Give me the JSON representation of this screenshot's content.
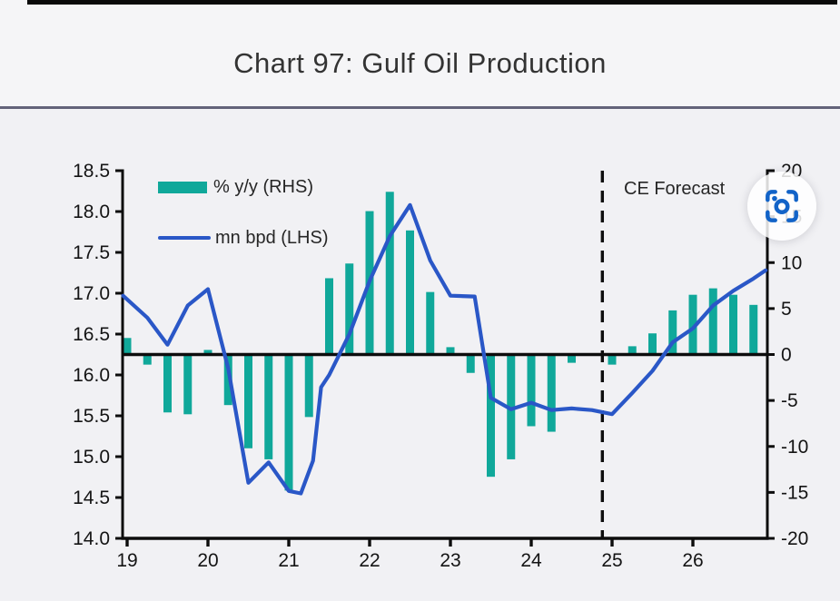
{
  "title": "Chart 97: Gulf Oil Production",
  "legend": {
    "bars_label": "% y/y (RHS)",
    "line_label": "mn bpd (LHS)"
  },
  "forecast": {
    "label": "CE Forecast"
  },
  "colors": {
    "bars": "#10a89a",
    "line": "#2a57c7",
    "axis": "#0d0d0d",
    "rule": "#63637a",
    "background": "#f1f1f4",
    "zoom_icon_blue": "#1263c8"
  },
  "chart_data": {
    "type": "bar+line combo, dual axis",
    "title": "Chart 97: Gulf Oil Production",
    "x_axis": {
      "tick_labels": [
        "19",
        "20",
        "21",
        "22",
        "23",
        "24",
        "25",
        "26"
      ],
      "tick_values": [
        19,
        20,
        21,
        22,
        23,
        24,
        25,
        26
      ],
      "range": [
        18.94,
        26.92
      ]
    },
    "left_axis": {
      "label": "mn bpd (LHS)",
      "tick_labels": [
        "18.5",
        "18.0",
        "17.5",
        "17.0",
        "16.5",
        "16.0",
        "15.5",
        "15.0",
        "14.5",
        "14.0"
      ],
      "tick_values": [
        18.5,
        18.0,
        17.5,
        17.0,
        16.5,
        16.0,
        15.5,
        15.0,
        14.5,
        14.0
      ],
      "range": [
        14.0,
        18.5
      ]
    },
    "right_axis": {
      "label": "% y/y (RHS)",
      "tick_labels": [
        "20",
        "15",
        "10",
        "5",
        "0",
        "-5",
        "-10",
        "-15",
        "-20"
      ],
      "tick_values": [
        20,
        15,
        10,
        5,
        0,
        -5,
        -10,
        -15,
        -20
      ],
      "range": [
        -20,
        20
      ],
      "zero_line": true
    },
    "bars": {
      "name": "% y/y (RHS)",
      "axis": "right",
      "x": [
        19.0,
        19.25,
        19.5,
        19.75,
        20.0,
        20.25,
        20.5,
        20.75,
        21.0,
        21.25,
        21.5,
        21.75,
        22.0,
        22.25,
        22.5,
        22.75,
        23.0,
        23.25,
        23.5,
        23.75,
        24.0,
        24.25,
        24.5,
        25.0,
        25.25,
        25.5,
        25.75,
        26.0,
        26.25,
        26.5,
        26.75
      ],
      "values": [
        1.8,
        -1.1,
        -6.3,
        -6.5,
        0.5,
        -5.5,
        -10.2,
        -11.4,
        -14.8,
        -6.8,
        8.3,
        9.9,
        15.6,
        17.7,
        13.5,
        6.8,
        0.8,
        -2.0,
        -13.3,
        -11.4,
        -7.8,
        -8.4,
        -0.9,
        -1.1,
        0.9,
        2.3,
        4.8,
        6.5,
        7.2,
        6.5,
        5.4
      ]
    },
    "line": {
      "name": "mn bpd (LHS)",
      "axis": "left",
      "points": [
        [
          18.95,
          16.97
        ],
        [
          19.25,
          16.7
        ],
        [
          19.5,
          16.37
        ],
        [
          19.75,
          16.85
        ],
        [
          20.0,
          17.05
        ],
        [
          20.25,
          16.08
        ],
        [
          20.5,
          14.68
        ],
        [
          20.75,
          14.93
        ],
        [
          21.0,
          14.58
        ],
        [
          21.15,
          14.55
        ],
        [
          21.3,
          14.95
        ],
        [
          21.4,
          15.85
        ],
        [
          21.5,
          16.0
        ],
        [
          21.75,
          16.5
        ],
        [
          22.0,
          17.15
        ],
        [
          22.25,
          17.7
        ],
        [
          22.5,
          18.08
        ],
        [
          22.75,
          17.4
        ],
        [
          23.0,
          16.97
        ],
        [
          23.3,
          16.96
        ],
        [
          23.5,
          15.72
        ],
        [
          23.75,
          15.58
        ],
        [
          24.0,
          15.66
        ],
        [
          24.25,
          15.57
        ],
        [
          24.5,
          15.59
        ],
        [
          24.75,
          15.57
        ],
        [
          25.0,
          15.52
        ],
        [
          25.25,
          15.78
        ],
        [
          25.5,
          16.05
        ],
        [
          25.75,
          16.4
        ],
        [
          26.0,
          16.57
        ],
        [
          26.25,
          16.85
        ],
        [
          26.5,
          17.03
        ],
        [
          26.75,
          17.18
        ],
        [
          26.9,
          17.28
        ]
      ]
    },
    "forecast_line_x": 24.88,
    "annotations": [
      "CE Forecast"
    ]
  }
}
